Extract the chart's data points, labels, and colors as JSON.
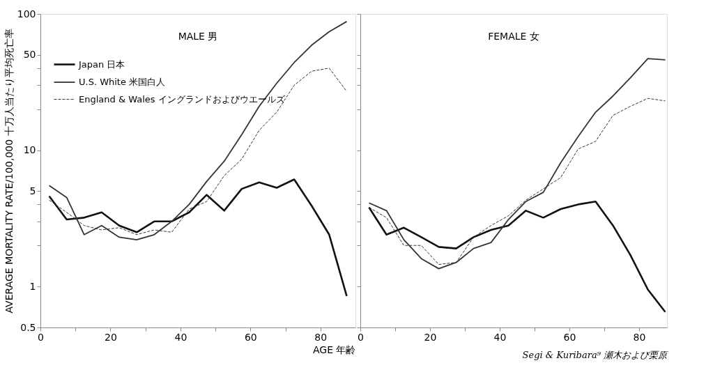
{
  "chart_data": [
    {
      "type": "line",
      "title": "MALE 男",
      "xlabel": "AGE 年齢",
      "ylabel": "AVERAGE MORTALITY RATE/100,000 十万人当たり平均死亡率",
      "x": [
        2.5,
        7.5,
        12.5,
        17.5,
        22.5,
        27.5,
        32.5,
        37.5,
        42.5,
        47.5,
        52.5,
        57.5,
        62.5,
        67.5,
        72.5,
        77.5,
        82.5,
        87.5
      ],
      "series": [
        {
          "name": "Japan 日本",
          "color": "#111111",
          "line_style": "solid",
          "values": [
            4.6,
            3.1,
            3.2,
            3.5,
            2.8,
            2.5,
            3.0,
            3.0,
            3.5,
            4.7,
            3.6,
            5.2,
            5.8,
            5.3,
            6.1,
            3.9,
            2.4,
            0.85
          ]
        },
        {
          "name": "U.S. White 米国白人",
          "color": "#333333",
          "line_style": "solid",
          "values": [
            5.5,
            4.5,
            2.4,
            2.8,
            2.3,
            2.2,
            2.4,
            3.0,
            4.0,
            5.9,
            8.3,
            13,
            21,
            31,
            44,
            59,
            74,
            88
          ]
        },
        {
          "name": "England & Wales イングランドおよびウエールズ",
          "color": "#333333",
          "line_style": "dashed",
          "values": [
            4.3,
            3.5,
            2.8,
            2.6,
            2.7,
            2.4,
            2.6,
            2.5,
            3.7,
            4.2,
            6.5,
            8.6,
            14,
            19,
            30,
            38,
            40,
            27
          ]
        }
      ],
      "xlim": [
        0,
        90
      ],
      "xticks": [
        0,
        {
          "value": 10,
          "label": null
        },
        20,
        {
          "value": 30,
          "label": null
        },
        40,
        {
          "value": 50,
          "label": null
        },
        60,
        {
          "value": 70,
          "label": null
        },
        80
      ],
      "ylim": [
        0.5,
        100
      ],
      "yticks": [
        0.5,
        1,
        {
          "value": 2,
          "label": null
        },
        {
          "value": 3,
          "label": null
        },
        {
          "value": 4,
          "label": null
        },
        5,
        10,
        {
          "value": 20,
          "label": null
        },
        {
          "value": 30,
          "label": null
        },
        {
          "value": 40,
          "label": null
        },
        50,
        100
      ],
      "log": "y",
      "grid": false,
      "legend": "top left"
    },
    {
      "type": "line",
      "title": "FEMALE 女",
      "annotations": [
        "Segi & Kuribara⁹ 瀬木および栗原"
      ],
      "x": [
        2.5,
        7.5,
        12.5,
        17.5,
        22.5,
        27.5,
        32.5,
        37.5,
        42.5,
        47.5,
        52.5,
        57.5,
        62.5,
        67.5,
        72.5,
        77.5,
        82.5,
        87.5
      ],
      "series": [
        {
          "color": "#111111",
          "line_style": "solid",
          "values": [
            3.8,
            2.4,
            2.7,
            2.3,
            1.95,
            1.9,
            2.3,
            2.6,
            2.8,
            3.6,
            3.2,
            3.7,
            4.0,
            4.2,
            2.8,
            1.7,
            0.95,
            0.65
          ]
        },
        {
          "color": "#333333",
          "line_style": "solid",
          "values": [
            4.1,
            3.6,
            2.2,
            1.6,
            1.35,
            1.5,
            1.9,
            2.1,
            3.1,
            4.2,
            4.9,
            8.1,
            12.6,
            19,
            25,
            34,
            47,
            46
          ]
        },
        {
          "color": "#333333",
          "line_style": "dashed",
          "values": [
            3.8,
            3.2,
            2.0,
            2.0,
            1.45,
            1.5,
            2.3,
            2.8,
            3.3,
            4.3,
            5.2,
            6.3,
            10.2,
            11.6,
            18,
            21,
            24,
            23
          ]
        }
      ],
      "xlim": [
        0,
        88
      ],
      "xticks": [
        0,
        {
          "value": 10,
          "label": null
        },
        20,
        {
          "value": 30,
          "label": null
        },
        40,
        {
          "value": 50,
          "label": null
        },
        60,
        {
          "value": 70,
          "label": null
        },
        80
      ],
      "ylim": [
        0.5,
        100
      ],
      "yticks": [
        0.5,
        1,
        {
          "value": 2,
          "label": null
        },
        {
          "value": 3,
          "label": null
        },
        {
          "value": 4,
          "label": null
        },
        5,
        10,
        {
          "value": 20,
          "label": null
        },
        {
          "value": 30,
          "label": null
        },
        {
          "value": 40,
          "label": null
        },
        50,
        100
      ],
      "log": "y",
      "grid": false,
      "tick_labels": "x",
      "legend": false
    }
  ]
}
